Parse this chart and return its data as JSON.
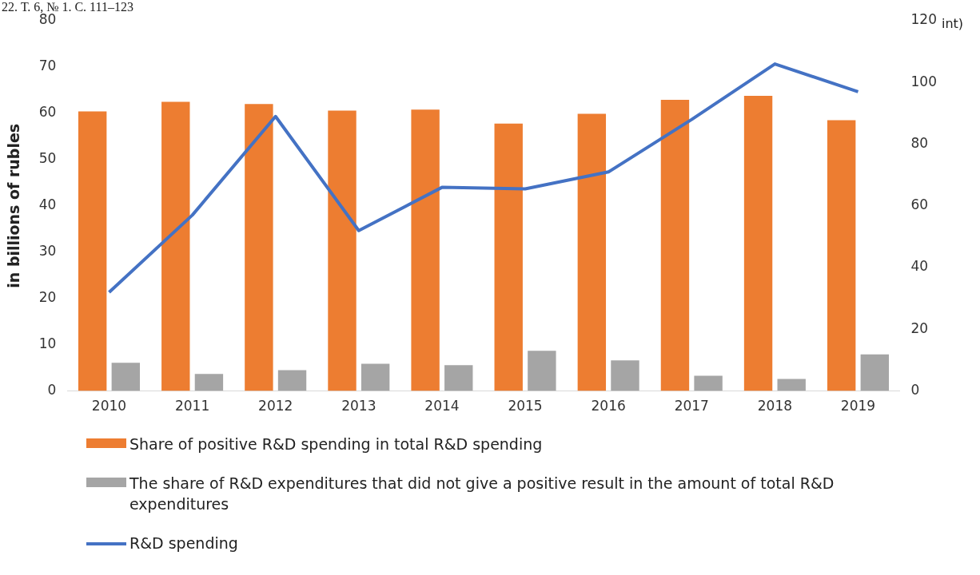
{
  "chart_data": {
    "type": "bar",
    "categories": [
      "2010",
      "2011",
      "2012",
      "2013",
      "2014",
      "2015",
      "2016",
      "2017",
      "2018",
      "2019"
    ],
    "ylabel": "in billions of rubles",
    "y2label": "int)",
    "annotations": [
      "22. Т. 6, № 1. С. 111–123"
    ],
    "series": [
      {
        "name": "Share of positive R&D spending in total R&D spending",
        "color": "#ed7d31",
        "values": [
          60.4,
          62.5,
          62.0,
          60.6,
          60.8,
          57.8,
          59.9,
          62.9,
          63.8,
          58.5
        ]
      },
      {
        "name": "The share of R&D expenditures that did not give a positive result in the amount of total R&D expenditures",
        "color": "#a5a5a5",
        "values": [
          6.1,
          3.7,
          4.5,
          5.9,
          5.6,
          8.7,
          6.6,
          3.3,
          2.6,
          7.9
        ]
      },
      {
        "name": "R&D spending",
        "type": "line",
        "axis": "y2",
        "color": "#4472c4",
        "marker": "none",
        "values": [
          32,
          57,
          89,
          52,
          66,
          65.5,
          71,
          88,
          106,
          97
        ]
      }
    ],
    "ylim": [
      0,
      80
    ],
    "yticks": [
      0,
      10,
      20,
      30,
      40,
      50,
      60,
      70,
      80
    ],
    "y2lim": [
      0,
      120
    ],
    "y2ticks": [
      0,
      20,
      40,
      60,
      80,
      100,
      120
    ],
    "grid": false,
    "legend": "bottom"
  }
}
